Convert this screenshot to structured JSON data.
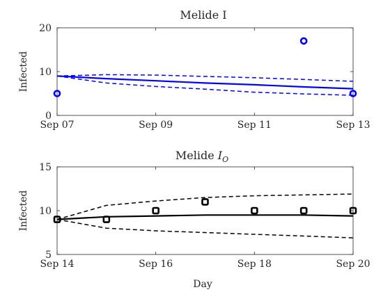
{
  "chart_data": [
    {
      "type": "line",
      "title_main": "Melide I",
      "title_sub": "",
      "xlabel": "",
      "ylabel": "Infected",
      "xlim": [
        "2020-09-07",
        "2020-09-13"
      ],
      "ylim": [
        0,
        20
      ],
      "xticks": [
        "2020-09-07",
        "2020-09-09",
        "2020-09-11",
        "2020-09-13"
      ],
      "xtick_labels": [
        "Sep 07",
        "Sep 09",
        "Sep 11",
        "Sep 13"
      ],
      "yticks": [
        0,
        10,
        20
      ],
      "ytick_labels": [
        "0",
        "10",
        "20"
      ],
      "color": "#0000ff",
      "series": [
        {
          "role": "mean",
          "style": "solid",
          "x": [
            "2020-09-07",
            "2020-09-08",
            "2020-09-09",
            "2020-09-10",
            "2020-09-11",
            "2020-09-12",
            "2020-09-13"
          ],
          "y": [
            9.0,
            8.4,
            7.9,
            7.4,
            7.0,
            6.5,
            6.1
          ]
        },
        {
          "role": "upper",
          "style": "dashed",
          "x": [
            "2020-09-07",
            "2020-09-08",
            "2020-09-09",
            "2020-09-10",
            "2020-09-11",
            "2020-09-12",
            "2020-09-13"
          ],
          "y": [
            9.0,
            9.3,
            9.2,
            8.9,
            8.6,
            8.2,
            7.8
          ]
        },
        {
          "role": "lower",
          "style": "dashed",
          "x": [
            "2020-09-07",
            "2020-09-08",
            "2020-09-09",
            "2020-09-10",
            "2020-09-11",
            "2020-09-12",
            "2020-09-13"
          ],
          "y": [
            9.0,
            7.4,
            6.6,
            6.0,
            5.3,
            4.9,
            4.6
          ]
        },
        {
          "role": "observed",
          "style": "markers",
          "x": [
            "2020-09-07",
            "2020-09-12",
            "2020-09-13"
          ],
          "y": [
            5,
            17,
            5
          ]
        }
      ]
    },
    {
      "type": "line",
      "title_main": "Melide ",
      "title_sub": "O",
      "title_math": "I",
      "xlabel": "Day",
      "ylabel": "Infected",
      "xlim": [
        "2020-09-14",
        "2020-09-20"
      ],
      "ylim": [
        5,
        15
      ],
      "xticks": [
        "2020-09-14",
        "2020-09-16",
        "2020-09-18",
        "2020-09-20"
      ],
      "xtick_labels": [
        "Sep 14",
        "Sep 16",
        "Sep 18",
        "Sep 20"
      ],
      "yticks": [
        5,
        10,
        15
      ],
      "ytick_labels": [
        "5",
        "10",
        "15"
      ],
      "color": "#000000",
      "series": [
        {
          "role": "mean",
          "style": "solid",
          "x": [
            "2020-09-14",
            "2020-09-15",
            "2020-09-16",
            "2020-09-17",
            "2020-09-18",
            "2020-09-19",
            "2020-09-20"
          ],
          "y": [
            9.0,
            9.3,
            9.4,
            9.5,
            9.5,
            9.5,
            9.4
          ]
        },
        {
          "role": "upper",
          "style": "dashed",
          "x": [
            "2020-09-14",
            "2020-09-15",
            "2020-09-16",
            "2020-09-17",
            "2020-09-18",
            "2020-09-19",
            "2020-09-20"
          ],
          "y": [
            9.0,
            10.6,
            11.1,
            11.5,
            11.7,
            11.8,
            11.9
          ]
        },
        {
          "role": "lower",
          "style": "dashed",
          "x": [
            "2020-09-14",
            "2020-09-15",
            "2020-09-16",
            "2020-09-17",
            "2020-09-18",
            "2020-09-19",
            "2020-09-20"
          ],
          "y": [
            9.0,
            8.0,
            7.7,
            7.5,
            7.3,
            7.1,
            6.9
          ]
        },
        {
          "role": "observed",
          "style": "markers",
          "x": [
            "2020-09-14",
            "2020-09-15",
            "2020-09-16",
            "2020-09-17",
            "2020-09-18",
            "2020-09-19",
            "2020-09-20"
          ],
          "y": [
            9,
            9,
            10,
            11,
            10,
            10,
            10
          ]
        }
      ]
    }
  ]
}
